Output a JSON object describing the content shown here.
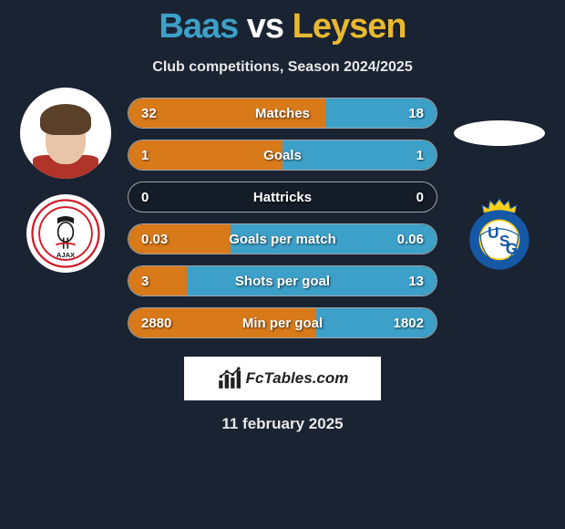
{
  "title": {
    "p1": "Baas",
    "vs": "vs",
    "p2": "Leysen"
  },
  "title_colors": {
    "p1": "#3da0c8",
    "vs": "#ffffff",
    "p2": "#e8b830"
  },
  "subtitle": "Club competitions, Season 2024/2025",
  "colors": {
    "left": "#d97a1a",
    "right": "#3da0c8",
    "bg": "#1a2332"
  },
  "stats": [
    {
      "label": "Matches",
      "left_val": "32",
      "right_val": "18",
      "left_pct": 64,
      "right_pct": 36
    },
    {
      "label": "Goals",
      "left_val": "1",
      "right_val": "1",
      "left_pct": 50,
      "right_pct": 50
    },
    {
      "label": "Hattricks",
      "left_val": "0",
      "right_val": "0",
      "left_pct": 0,
      "right_pct": 0
    },
    {
      "label": "Goals per match",
      "left_val": "0.03",
      "right_val": "0.06",
      "left_pct": 33,
      "right_pct": 67
    },
    {
      "label": "Shots per goal",
      "left_val": "3",
      "right_val": "13",
      "left_pct": 19,
      "right_pct": 81
    },
    {
      "label": "Min per goal",
      "left_val": "2880",
      "right_val": "1802",
      "left_pct": 61,
      "right_pct": 39
    }
  ],
  "footer_text": "FcTables.com",
  "date": "11 february 2025",
  "badges": {
    "ajax_colors": {
      "outer": "#ffffff",
      "ring": "#d01d2a",
      "inner": "#ffffff",
      "text": "#1a1a1a"
    },
    "usg_colors": {
      "bg": "#1558a5",
      "stripe": "#ffd11a",
      "text": "#1558a5",
      "crown": "#ffd11a"
    }
  }
}
